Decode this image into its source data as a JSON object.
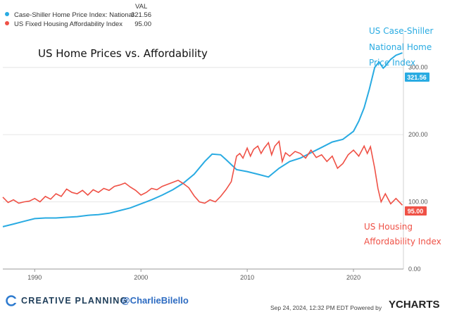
{
  "chart_data": {
    "type": "line",
    "title": "US Home Prices vs. Affordability",
    "legend_header": "VAL",
    "ylim": [
      0,
      350
    ],
    "xlim": [
      1987,
      2024.7
    ],
    "yticks": [
      0,
      100,
      200,
      300
    ],
    "ytick_labels": [
      "0.00",
      "100.00",
      "200.00",
      "300.00"
    ],
    "xticks": [
      1990,
      2000,
      2010,
      2020
    ],
    "xtick_labels": [
      "1990",
      "2000",
      "2010",
      "2020"
    ],
    "grid": true,
    "series": [
      {
        "name": "Case-Shiller Home Price Index: National",
        "short_label": [
          "US Case-Shiller",
          "National Home",
          "Price Index"
        ],
        "color": "#29abe2",
        "last_value_label": "321.56",
        "x": [
          1987,
          1988,
          1989,
          1990,
          1991,
          1992,
          1993,
          1994,
          1995,
          1996,
          1997,
          1998,
          1999,
          2000,
          2001,
          2002,
          2003,
          2004,
          2005,
          2006,
          2006.7,
          2007.5,
          2008,
          2009,
          2010,
          2011,
          2012,
          2013,
          2014,
          2015,
          2016,
          2017,
          2018,
          2019,
          2020,
          2020.5,
          2021,
          2021.5,
          2022,
          2022.4,
          2022.8,
          2023,
          2023.5,
          2024,
          2024.6
        ],
        "values": [
          63,
          67,
          71,
          75,
          76,
          76,
          77,
          78,
          80,
          81,
          83,
          87,
          91,
          97,
          103,
          110,
          118,
          128,
          141,
          160,
          171,
          170,
          163,
          148,
          145,
          141,
          137,
          150,
          160,
          165,
          173,
          181,
          189,
          193,
          205,
          220,
          240,
          268,
          300,
          308,
          299,
          302,
          312,
          318,
          321.56
        ]
      },
      {
        "name": "US Fixed Housing Affordability Index",
        "short_label": [
          "US Housing",
          "Affordability Index"
        ],
        "color": "#ef5146",
        "last_value_label": "95.00",
        "x": [
          1987,
          1987.5,
          1988,
          1988.5,
          1989,
          1989.5,
          1990,
          1990.5,
          1991,
          1991.5,
          1992,
          1992.5,
          1993,
          1993.5,
          1994,
          1994.5,
          1995,
          1995.5,
          1996,
          1996.5,
          1997,
          1997.5,
          1998,
          1998.5,
          1999,
          1999.5,
          2000,
          2000.5,
          2001,
          2001.5,
          2002,
          2002.5,
          2003,
          2003.5,
          2004,
          2004.5,
          2005,
          2005.5,
          2006,
          2006.5,
          2007,
          2007.5,
          2008,
          2008.5,
          2009,
          2009.3,
          2009.6,
          2010,
          2010.3,
          2010.6,
          2011,
          2011.3,
          2011.6,
          2012,
          2012.3,
          2012.6,
          2013,
          2013.3,
          2013.6,
          2014,
          2014.5,
          2015,
          2015.5,
          2016,
          2016.5,
          2017,
          2017.5,
          2018,
          2018.5,
          2019,
          2019.5,
          2020,
          2020.5,
          2021,
          2021.3,
          2021.6,
          2022,
          2022.3,
          2022.6,
          2023,
          2023.5,
          2024,
          2024.6
        ],
        "values": [
          107,
          99,
          103,
          98,
          100,
          101,
          105,
          100,
          108,
          104,
          112,
          108,
          119,
          114,
          112,
          117,
          110,
          118,
          114,
          120,
          117,
          123,
          125,
          128,
          122,
          117,
          110,
          114,
          120,
          118,
          123,
          126,
          129,
          132,
          127,
          121,
          109,
          100,
          98,
          103,
          100,
          108,
          118,
          130,
          168,
          172,
          165,
          180,
          168,
          178,
          183,
          172,
          180,
          188,
          170,
          183,
          190,
          160,
          173,
          168,
          175,
          172,
          165,
          177,
          166,
          170,
          160,
          168,
          150,
          157,
          170,
          177,
          168,
          183,
          172,
          182,
          150,
          120,
          100,
          112,
          97,
          105,
          95
        ]
      }
    ]
  },
  "footer": {
    "brand": "CREATIVE PLANNING",
    "handle": "@CharlieBilello",
    "timestamp": "Sep 24, 2024, 12:32 PM EDT Powered by",
    "ycharts": "YCHARTS"
  }
}
